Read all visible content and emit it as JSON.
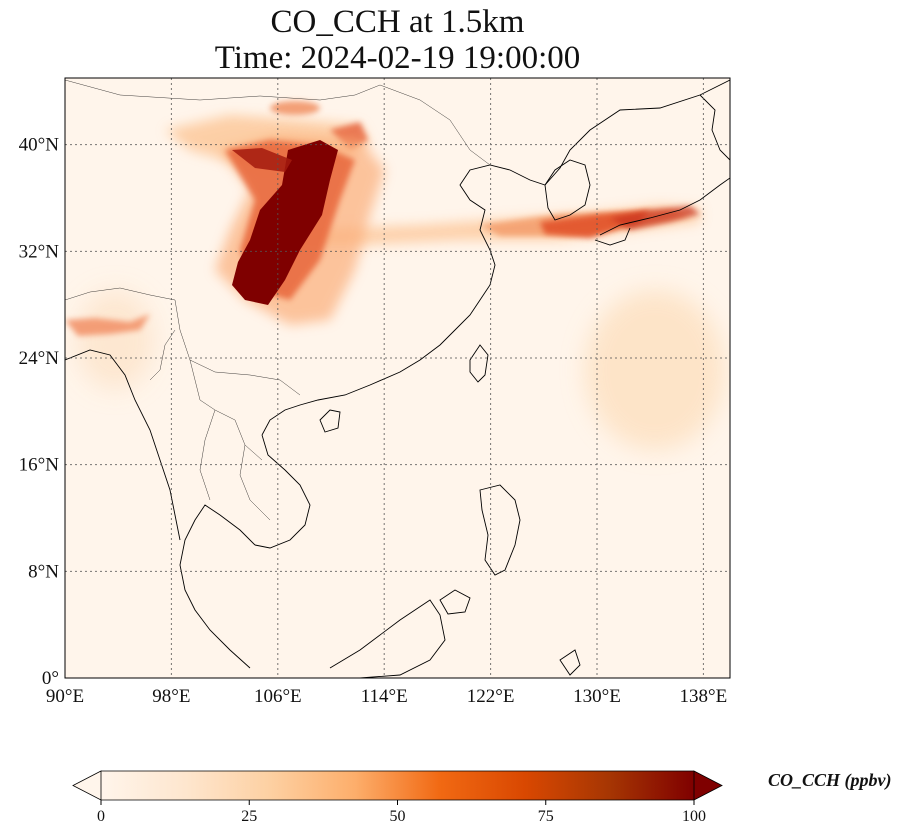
{
  "title": {
    "line1": "CO_CCH at 1.5km",
    "line2": "Time: 2024-02-19 19:00:00"
  },
  "map": {
    "lon_range": [
      90,
      140
    ],
    "lat_range": [
      0,
      45
    ],
    "lon_ticks": [
      {
        "value": 90,
        "label": "90°E"
      },
      {
        "value": 98,
        "label": "98°E"
      },
      {
        "value": 106,
        "label": "106°E"
      },
      {
        "value": 114,
        "label": "114°E"
      },
      {
        "value": 122,
        "label": "122°E"
      },
      {
        "value": 130,
        "label": "130°E"
      },
      {
        "value": 138,
        "label": "138°E"
      }
    ],
    "lat_ticks": [
      {
        "value": 0,
        "label": "0°"
      },
      {
        "value": 8,
        "label": "8°N"
      },
      {
        "value": 16,
        "label": "16°N"
      },
      {
        "value": 24,
        "label": "24°N"
      },
      {
        "value": 32,
        "label": "32°N"
      },
      {
        "value": 40,
        "label": "40°N"
      }
    ],
    "gridlines": true,
    "background_color": "#fff5eb",
    "coastline_color": "#000000"
  },
  "colorbar": {
    "label": "CO_CCH (ppbv)",
    "min": 0,
    "max": 100,
    "ticks": [
      {
        "value": 0,
        "label": "0"
      },
      {
        "value": 25,
        "label": "25"
      },
      {
        "value": 50,
        "label": "50"
      },
      {
        "value": 75,
        "label": "75"
      },
      {
        "value": 100,
        "label": "100"
      }
    ],
    "extend": "both",
    "colormap": [
      "#fff5eb",
      "#fee6ce",
      "#fdd0a2",
      "#fdae6b",
      "#f16913",
      "#d94801",
      "#a63603",
      "#7f0000"
    ]
  }
}
